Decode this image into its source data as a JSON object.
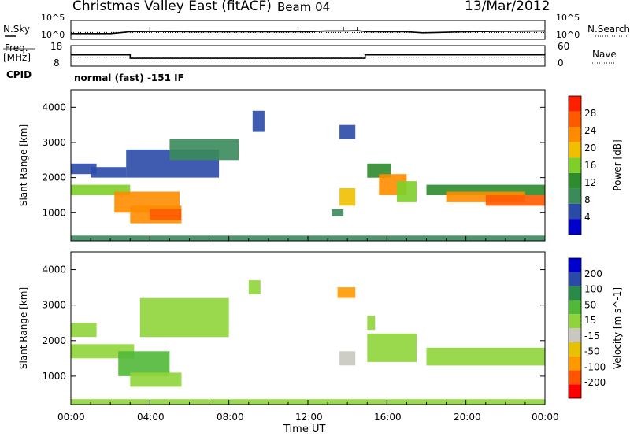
{
  "header": {
    "title": "Christmas Valley East (fitACF)",
    "beam": "Beam 04",
    "date": "13/Mar/2012"
  },
  "noise_panel": {
    "left_label": "N.Sky",
    "right_label": "N.Search",
    "left_ticks": [
      "10^5",
      "10^0"
    ],
    "right_ticks": [
      "10^5",
      "10^0"
    ]
  },
  "freq_panel": {
    "left_label_1": "Freq.",
    "left_label_2": "[MHz]",
    "right_label": "Nave",
    "left_ticks": [
      "18",
      "8"
    ],
    "right_ticks": [
      "60",
      "0"
    ]
  },
  "cpid": {
    "label": "CPID",
    "value": "normal (fast) -151 IF"
  },
  "x_axis": {
    "label": "Time UT",
    "ticks": [
      "00:00",
      "04:00",
      "08:00",
      "12:00",
      "16:00",
      "20:00",
      "00:00"
    ]
  },
  "colors": {
    "power": [
      "#0000cc",
      "#2a4aa8",
      "#3a8a5a",
      "#2e8b2e",
      "#7ecf2a",
      "#f0c000",
      "#ff8c00",
      "#ff5a00",
      "#ff2000"
    ],
    "velocity": [
      "#ff0000",
      "#ff5500",
      "#ff9900",
      "#e6c200",
      "#c8c8c0",
      "#8fd43a",
      "#52b838",
      "#2a8a4a",
      "#2a4aa8",
      "#0000cc"
    ]
  },
  "chart_data": [
    {
      "type": "line",
      "panel": "noise",
      "x_range": [
        "00:00",
        "00:00"
      ],
      "series": [
        {
          "name": "N.Sky",
          "style": "solid",
          "x": [
            0,
            2,
            3,
            4,
            6,
            8,
            10,
            12,
            13,
            14,
            14.5,
            15,
            16,
            17,
            17.8,
            18.5,
            20,
            22,
            24
          ],
          "values": [
            1.5,
            1.5,
            2.0,
            2.1,
            2.0,
            2.0,
            2.0,
            2.0,
            2.2,
            2.2,
            2.3,
            2.0,
            2.0,
            2.0,
            1.7,
            1.8,
            2.0,
            2.1,
            2.2
          ]
        },
        {
          "name": "N.Search",
          "style": "dotted",
          "x": [
            0,
            24
          ],
          "values": [
            1.8,
            1.8
          ]
        }
      ]
    },
    {
      "type": "line",
      "panel": "frequency",
      "ylim_left": [
        8,
        18
      ],
      "ylim_right": [
        0,
        60
      ],
      "series": [
        {
          "name": "Freq.",
          "style": "solid",
          "x": [
            0,
            3.0,
            3.0,
            14.9,
            14.9,
            24
          ],
          "values": [
            13.5,
            13.5,
            11.8,
            11.8,
            13.5,
            13.5
          ]
        },
        {
          "name": "Nave",
          "style": "dotted",
          "x": [
            0,
            24
          ],
          "values": [
            12.4,
            12.4
          ]
        }
      ]
    },
    {
      "type": "heatmap",
      "panel": "power",
      "ylabel": "Slant Range [km]",
      "y_ticks": [
        "4000",
        "3000",
        "2000",
        "1000"
      ],
      "ylim": [
        200,
        4500
      ],
      "xlim_hours": [
        0,
        24
      ],
      "colorbar": {
        "label": "Power [dB]",
        "ticks": [
          "28",
          "24",
          "20",
          "16",
          "12",
          "8",
          "4"
        ],
        "range": [
          0,
          30
        ]
      },
      "regions": [
        {
          "t0": 0.0,
          "t1": 1.3,
          "r0": 2100,
          "r1": 2400,
          "v": 5
        },
        {
          "t0": 1.0,
          "t1": 2.8,
          "r0": 2000,
          "r1": 2300,
          "v": 6
        },
        {
          "t0": 0.0,
          "t1": 3.0,
          "r0": 1500,
          "r1": 1800,
          "v": 16
        },
        {
          "t0": 2.2,
          "t1": 5.5,
          "r0": 1000,
          "r1": 1600,
          "v": 22
        },
        {
          "t0": 3.0,
          "t1": 5.6,
          "r0": 700,
          "r1": 1200,
          "v": 20
        },
        {
          "t0": 4.0,
          "t1": 5.6,
          "r0": 800,
          "r1": 1100,
          "v": 26
        },
        {
          "t0": 2.8,
          "t1": 7.5,
          "r0": 2000,
          "r1": 2800,
          "v": 6
        },
        {
          "t0": 5.0,
          "t1": 8.5,
          "r0": 2500,
          "r1": 3100,
          "v": 7
        },
        {
          "t0": 9.2,
          "t1": 9.8,
          "r0": 3300,
          "r1": 3900,
          "v": 6
        },
        {
          "t0": 13.6,
          "t1": 14.4,
          "r0": 1200,
          "r1": 1700,
          "v": 18
        },
        {
          "t0": 13.2,
          "t1": 13.8,
          "r0": 900,
          "r1": 1100,
          "v": 7
        },
        {
          "t0": 13.6,
          "t1": 14.4,
          "r0": 3100,
          "r1": 3500,
          "v": 6
        },
        {
          "t0": 15.0,
          "t1": 16.2,
          "r0": 2000,
          "r1": 2400,
          "v": 12
        },
        {
          "t0": 15.6,
          "t1": 17.0,
          "r0": 1500,
          "r1": 2100,
          "v": 20
        },
        {
          "t0": 16.5,
          "t1": 17.5,
          "r0": 1300,
          "r1": 1900,
          "v": 14
        },
        {
          "t0": 18.0,
          "t1": 24.0,
          "r0": 1500,
          "r1": 1800,
          "v": 10
        },
        {
          "t0": 19.0,
          "t1": 23.0,
          "r0": 1300,
          "r1": 1600,
          "v": 22
        },
        {
          "t0": 21.0,
          "t1": 24.0,
          "r0": 1200,
          "r1": 1500,
          "v": 26
        },
        {
          "t0": 0.0,
          "t1": 24.0,
          "r0": 200,
          "r1": 350,
          "v": 8
        }
      ]
    },
    {
      "type": "heatmap",
      "panel": "velocity",
      "ylabel": "Slant Range [km]",
      "y_ticks": [
        "4000",
        "3000",
        "2000",
        "1000"
      ],
      "ylim": [
        200,
        4500
      ],
      "xlim_hours": [
        0,
        24
      ],
      "colorbar": {
        "label": "Velocity [m s^-1]",
        "ticks": [
          "200",
          "100",
          "50",
          "15",
          "-15",
          "-50",
          "-100",
          "-200"
        ],
        "range": [
          -250,
          250
        ]
      },
      "regions": [
        {
          "t0": 0.0,
          "t1": 1.3,
          "r0": 2100,
          "r1": 2500,
          "v": 0
        },
        {
          "t0": 0.0,
          "t1": 3.2,
          "r0": 1500,
          "r1": 1900,
          "v": 30
        },
        {
          "t0": 2.4,
          "t1": 5.0,
          "r0": 1000,
          "r1": 1700,
          "v": 70
        },
        {
          "t0": 3.0,
          "t1": 5.6,
          "r0": 700,
          "r1": 1100,
          "v": 40
        },
        {
          "t0": 3.5,
          "t1": 8.0,
          "r0": 2100,
          "r1": 3200,
          "v": 0
        },
        {
          "t0": 9.0,
          "t1": 9.6,
          "r0": 3300,
          "r1": 3700,
          "v": 20
        },
        {
          "t0": 13.5,
          "t1": 14.4,
          "r0": 3200,
          "r1": 3500,
          "v": -120
        },
        {
          "t0": 13.6,
          "t1": 14.4,
          "r0": 1300,
          "r1": 1700,
          "v": -20
        },
        {
          "t0": 15.0,
          "t1": 17.5,
          "r0": 1400,
          "r1": 2200,
          "v": 0
        },
        {
          "t0": 15.0,
          "t1": 15.4,
          "r0": 2300,
          "r1": 2700,
          "v": 40
        },
        {
          "t0": 18.0,
          "t1": 24.0,
          "r0": 1300,
          "r1": 1800,
          "v": 0
        },
        {
          "t0": 0.0,
          "t1": 24.0,
          "r0": 200,
          "r1": 350,
          "v": 20
        }
      ]
    }
  ]
}
